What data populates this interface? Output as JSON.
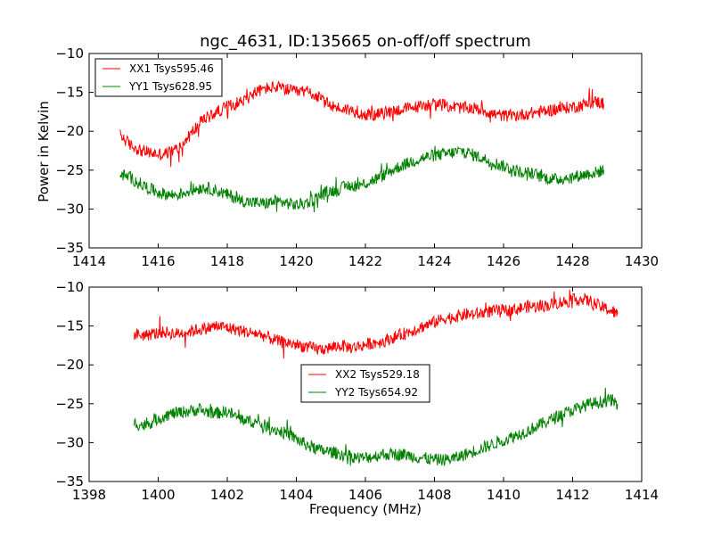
{
  "chart_data": [
    {
      "type": "line",
      "title": "ngc_4631, ID:135665 on-off/off spectrum",
      "xlabel": "",
      "ylabel": "Power in Kelvin",
      "xlim": [
        1414,
        1430
      ],
      "ylim": [
        -35,
        -10
      ],
      "x_ticks": [
        1414,
        1416,
        1418,
        1420,
        1422,
        1424,
        1426,
        1428,
        1430
      ],
      "y_ticks": [
        -35,
        -30,
        -25,
        -20,
        -15,
        -10
      ],
      "x_tick_labels": [
        "1414",
        "1416",
        "1418",
        "1420",
        "1422",
        "1424",
        "1426",
        "1428",
        "1430"
      ],
      "y_tick_labels": [
        "−35",
        "−30",
        "−25",
        "−20",
        "−15",
        "−10"
      ],
      "grid": false,
      "legend_position": "upper-left",
      "series": [
        {
          "name": "XX1 Tsys595.46",
          "color": "#ff0000",
          "x": [
            1414.9,
            1415.2,
            1415.5,
            1415.8,
            1416.1,
            1416.4,
            1416.7,
            1417.0,
            1417.3,
            1417.6,
            1417.9,
            1418.2,
            1418.5,
            1418.8,
            1419.1,
            1419.4,
            1419.7,
            1420.0,
            1420.3,
            1420.6,
            1420.9,
            1421.2,
            1421.5,
            1421.8,
            1422.1,
            1422.4,
            1422.7,
            1423.0,
            1423.3,
            1423.6,
            1423.9,
            1424.2,
            1424.5,
            1424.8,
            1425.1,
            1425.4,
            1425.7,
            1426.0,
            1426.3,
            1426.6,
            1426.9,
            1427.2,
            1427.5,
            1427.8,
            1428.1,
            1428.4,
            1428.7,
            1428.9
          ],
          "y": [
            -20.5,
            -21.8,
            -22.5,
            -22.8,
            -23.0,
            -22.6,
            -21.8,
            -20.0,
            -18.5,
            -17.8,
            -17.0,
            -16.5,
            -16.0,
            -15.0,
            -14.5,
            -14.3,
            -14.6,
            -15.0,
            -14.8,
            -15.5,
            -16.5,
            -17.0,
            -17.2,
            -17.6,
            -18.0,
            -17.8,
            -17.5,
            -17.2,
            -17.0,
            -16.8,
            -16.5,
            -16.6,
            -16.8,
            -17.0,
            -17.0,
            -17.3,
            -17.8,
            -18.0,
            -18.0,
            -17.8,
            -17.6,
            -17.4,
            -17.2,
            -17.0,
            -16.8,
            -16.5,
            -16.2,
            -16.5
          ]
        },
        {
          "name": "YY1 Tsys628.95",
          "color": "#008000",
          "x": [
            1414.9,
            1415.2,
            1415.5,
            1415.8,
            1416.1,
            1416.4,
            1416.7,
            1417.0,
            1417.3,
            1417.6,
            1417.9,
            1418.2,
            1418.5,
            1418.8,
            1419.1,
            1419.4,
            1419.7,
            1420.0,
            1420.3,
            1420.6,
            1420.9,
            1421.2,
            1421.5,
            1421.8,
            1422.1,
            1422.4,
            1422.7,
            1423.0,
            1423.3,
            1423.6,
            1423.9,
            1424.2,
            1424.5,
            1424.8,
            1425.1,
            1425.4,
            1425.7,
            1426.0,
            1426.3,
            1426.6,
            1426.9,
            1427.2,
            1427.5,
            1427.8,
            1428.1,
            1428.4,
            1428.7,
            1428.9
          ],
          "y": [
            -25.5,
            -26.0,
            -26.8,
            -27.5,
            -28.0,
            -28.2,
            -28.0,
            -27.5,
            -27.2,
            -27.5,
            -28.0,
            -28.5,
            -29.0,
            -29.2,
            -29.3,
            -29.0,
            -29.2,
            -29.5,
            -29.2,
            -28.5,
            -27.8,
            -27.5,
            -27.0,
            -27.0,
            -26.5,
            -26.0,
            -25.2,
            -24.5,
            -24.0,
            -23.5,
            -23.2,
            -23.0,
            -22.8,
            -22.5,
            -23.0,
            -23.5,
            -24.0,
            -24.5,
            -25.0,
            -25.3,
            -25.5,
            -26.0,
            -26.2,
            -26.0,
            -25.8,
            -25.5,
            -25.3,
            -25.0
          ]
        }
      ]
    },
    {
      "type": "line",
      "title": "",
      "xlabel": "Frequency (MHz)",
      "ylabel": "",
      "xlim": [
        1398,
        1414
      ],
      "ylim": [
        -35,
        -10
      ],
      "x_ticks": [
        1398,
        1400,
        1402,
        1404,
        1406,
        1408,
        1410,
        1412,
        1414
      ],
      "y_ticks": [
        -35,
        -30,
        -25,
        -20,
        -15,
        -10
      ],
      "x_tick_labels": [
        "1398",
        "1400",
        "1402",
        "1404",
        "1406",
        "1408",
        "1410",
        "1412",
        "1414"
      ],
      "y_tick_labels": [
        "−35",
        "−30",
        "−25",
        "−20",
        "−15",
        "−10"
      ],
      "grid": false,
      "legend_position": "center",
      "series": [
        {
          "name": "XX2 Tsys529.18",
          "color": "#ff0000",
          "x": [
            1399.3,
            1399.6,
            1399.9,
            1400.2,
            1400.5,
            1400.8,
            1401.1,
            1401.4,
            1401.7,
            1402.0,
            1402.3,
            1402.6,
            1402.9,
            1403.2,
            1403.5,
            1403.8,
            1404.1,
            1404.4,
            1404.7,
            1405.0,
            1405.3,
            1405.6,
            1405.9,
            1406.2,
            1406.5,
            1406.8,
            1407.1,
            1407.4,
            1407.7,
            1408.0,
            1408.3,
            1408.6,
            1408.9,
            1409.2,
            1409.5,
            1409.8,
            1410.1,
            1410.4,
            1410.7,
            1411.0,
            1411.3,
            1411.6,
            1411.9,
            1412.2,
            1412.5,
            1412.8,
            1413.1,
            1413.3
          ],
          "y": [
            -16.0,
            -16.2,
            -16.0,
            -15.8,
            -16.0,
            -15.8,
            -15.5,
            -15.3,
            -15.0,
            -15.2,
            -15.5,
            -15.8,
            -16.0,
            -16.5,
            -17.0,
            -17.2,
            -17.5,
            -17.8,
            -18.0,
            -17.8,
            -17.5,
            -17.8,
            -17.5,
            -17.2,
            -17.0,
            -16.5,
            -16.0,
            -15.5,
            -15.0,
            -14.5,
            -14.0,
            -13.8,
            -13.5,
            -13.5,
            -13.2,
            -13.0,
            -13.0,
            -12.8,
            -12.5,
            -12.5,
            -12.3,
            -12.0,
            -11.8,
            -11.5,
            -11.8,
            -12.5,
            -13.0,
            -13.5
          ]
        },
        {
          "name": "YY2 Tsys654.92",
          "color": "#008000",
          "x": [
            1399.3,
            1399.6,
            1399.9,
            1400.2,
            1400.5,
            1400.8,
            1401.1,
            1401.4,
            1401.7,
            1402.0,
            1402.3,
            1402.6,
            1402.9,
            1403.2,
            1403.5,
            1403.8,
            1404.1,
            1404.4,
            1404.7,
            1405.0,
            1405.3,
            1405.6,
            1405.9,
            1406.2,
            1406.5,
            1406.8,
            1407.1,
            1407.4,
            1407.7,
            1408.0,
            1408.3,
            1408.6,
            1408.9,
            1409.2,
            1409.5,
            1409.8,
            1410.1,
            1410.4,
            1410.7,
            1411.0,
            1411.3,
            1411.6,
            1411.9,
            1412.2,
            1412.5,
            1412.8,
            1413.1,
            1413.3
          ],
          "y": [
            -27.5,
            -27.8,
            -27.2,
            -26.5,
            -26.2,
            -26.0,
            -25.8,
            -26.0,
            -26.2,
            -26.0,
            -26.8,
            -27.2,
            -27.5,
            -28.0,
            -28.5,
            -29.0,
            -29.8,
            -30.5,
            -31.0,
            -31.2,
            -31.5,
            -31.8,
            -32.0,
            -31.8,
            -31.5,
            -31.5,
            -31.5,
            -31.8,
            -32.0,
            -32.2,
            -32.2,
            -32.0,
            -31.5,
            -31.0,
            -30.5,
            -30.0,
            -29.5,
            -29.0,
            -28.5,
            -27.8,
            -27.2,
            -26.5,
            -26.0,
            -25.5,
            -25.0,
            -24.8,
            -24.5,
            -25.0
          ]
        }
      ]
    }
  ]
}
